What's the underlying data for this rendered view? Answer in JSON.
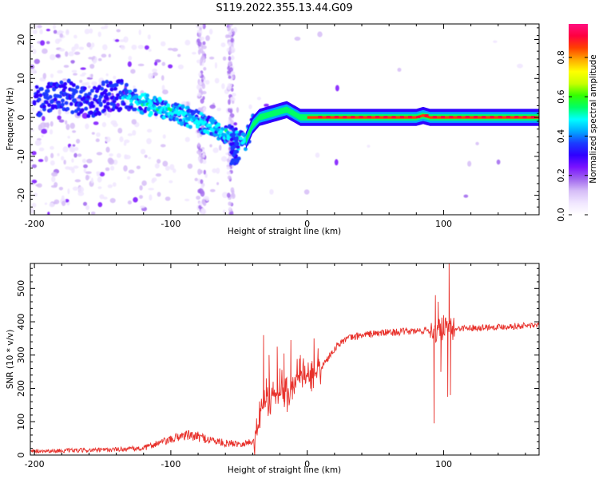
{
  "title": "S119.2022.355.13.44.G09",
  "chart_data": [
    {
      "type": "heatmap",
      "xlabel": "Height of straight line (km)",
      "ylabel": "Frequency (Hz)",
      "xlim": [
        -203,
        170
      ],
      "ylim": [
        -25,
        24
      ],
      "xticks": [
        -200,
        -100,
        0,
        100
      ],
      "yticks": [
        -20,
        -10,
        0,
        10,
        20
      ],
      "colorbar": {
        "label": "Normalized spectral amplitude",
        "range": [
          0.0,
          0.97
        ],
        "ticks": [
          0.0,
          0.2,
          0.4,
          0.6,
          0.8
        ],
        "colormap": [
          "#ffffff",
          "#f0e6ff",
          "#d6bdf7",
          "#a066ee",
          "#7a12ff",
          "#2f00ff",
          "#1a3cff",
          "#00aaff",
          "#00ffff",
          "#00ff66",
          "#33ff00",
          "#c8ff00",
          "#ffff00",
          "#ffaa00",
          "#ff4000",
          "#ff0040",
          "#ff1080"
        ]
      },
      "ridge": {
        "x": [
          -200,
          -190,
          -180,
          -170,
          -160,
          -150,
          -140,
          -130,
          -120,
          -110,
          -100,
          -90,
          -80,
          -70,
          -60,
          -55,
          -50,
          -45,
          -40,
          -35,
          -30,
          -25,
          -20,
          -15,
          -10,
          -5,
          0,
          10,
          20,
          40,
          60,
          80,
          85,
          90,
          95,
          100,
          110,
          120,
          140,
          170
        ],
        "freq": [
          4,
          5,
          6,
          5,
          4,
          5,
          6,
          5,
          3.5,
          2.5,
          1.5,
          0.5,
          -1,
          -2.5,
          -4,
          -5,
          -6,
          -6,
          -2,
          0,
          0.5,
          1,
          1.5,
          2,
          1,
          0,
          0,
          0,
          0,
          0,
          0,
          0,
          0.5,
          0,
          0,
          0,
          0,
          0,
          0,
          0
        ]
      }
    },
    {
      "type": "line",
      "xlabel": "Height of straight line (km)",
      "ylabel": "SNR (10 * v/v)",
      "xlim": [
        -203,
        170
      ],
      "ylim": [
        0,
        575
      ],
      "xticks": [
        -200,
        -100,
        0,
        100
      ],
      "yticks": [
        0,
        100,
        200,
        300,
        400,
        500
      ],
      "color": "#e8312b",
      "anchors": {
        "x": [
          -203,
          -180,
          -150,
          -120,
          -110,
          -100,
          -95,
          -90,
          -80,
          -70,
          -60,
          -50,
          -45,
          -40,
          -38,
          -35,
          -30,
          -25,
          -20,
          -15,
          -10,
          -5,
          0,
          5,
          10,
          15,
          20,
          25,
          30,
          40,
          50,
          60,
          70,
          80,
          90,
          95,
          100,
          105,
          110,
          120,
          140,
          170
        ],
        "y": [
          12,
          13,
          15,
          20,
          35,
          45,
          55,
          60,
          55,
          45,
          35,
          35,
          35,
          40,
          70,
          120,
          170,
          175,
          180,
          195,
          215,
          230,
          225,
          235,
          260,
          290,
          320,
          340,
          350,
          360,
          365,
          368,
          370,
          372,
          375,
          370,
          380,
          375,
          380,
          382,
          385,
          390
        ]
      },
      "spikes": [
        {
          "x": -32,
          "y": 360
        },
        {
          "x": -30,
          "y": 230
        },
        {
          "x": -28,
          "y": 300
        },
        {
          "x": -25,
          "y": 220
        },
        {
          "x": -22,
          "y": 325
        },
        {
          "x": -20,
          "y": 260
        },
        {
          "x": -17,
          "y": 305
        },
        {
          "x": -15,
          "y": 200
        },
        {
          "x": -12,
          "y": 345
        },
        {
          "x": -5,
          "y": 300
        },
        {
          "x": 5,
          "y": 350
        },
        {
          "x": 8,
          "y": 320
        },
        {
          "x": 93,
          "y": 95
        },
        {
          "x": 94,
          "y": 480
        },
        {
          "x": 96,
          "y": 460
        },
        {
          "x": 98,
          "y": 250
        },
        {
          "x": 100,
          "y": 420
        },
        {
          "x": 103,
          "y": 175
        },
        {
          "x": 104,
          "y": 575
        },
        {
          "x": 105,
          "y": 180
        }
      ]
    }
  ]
}
